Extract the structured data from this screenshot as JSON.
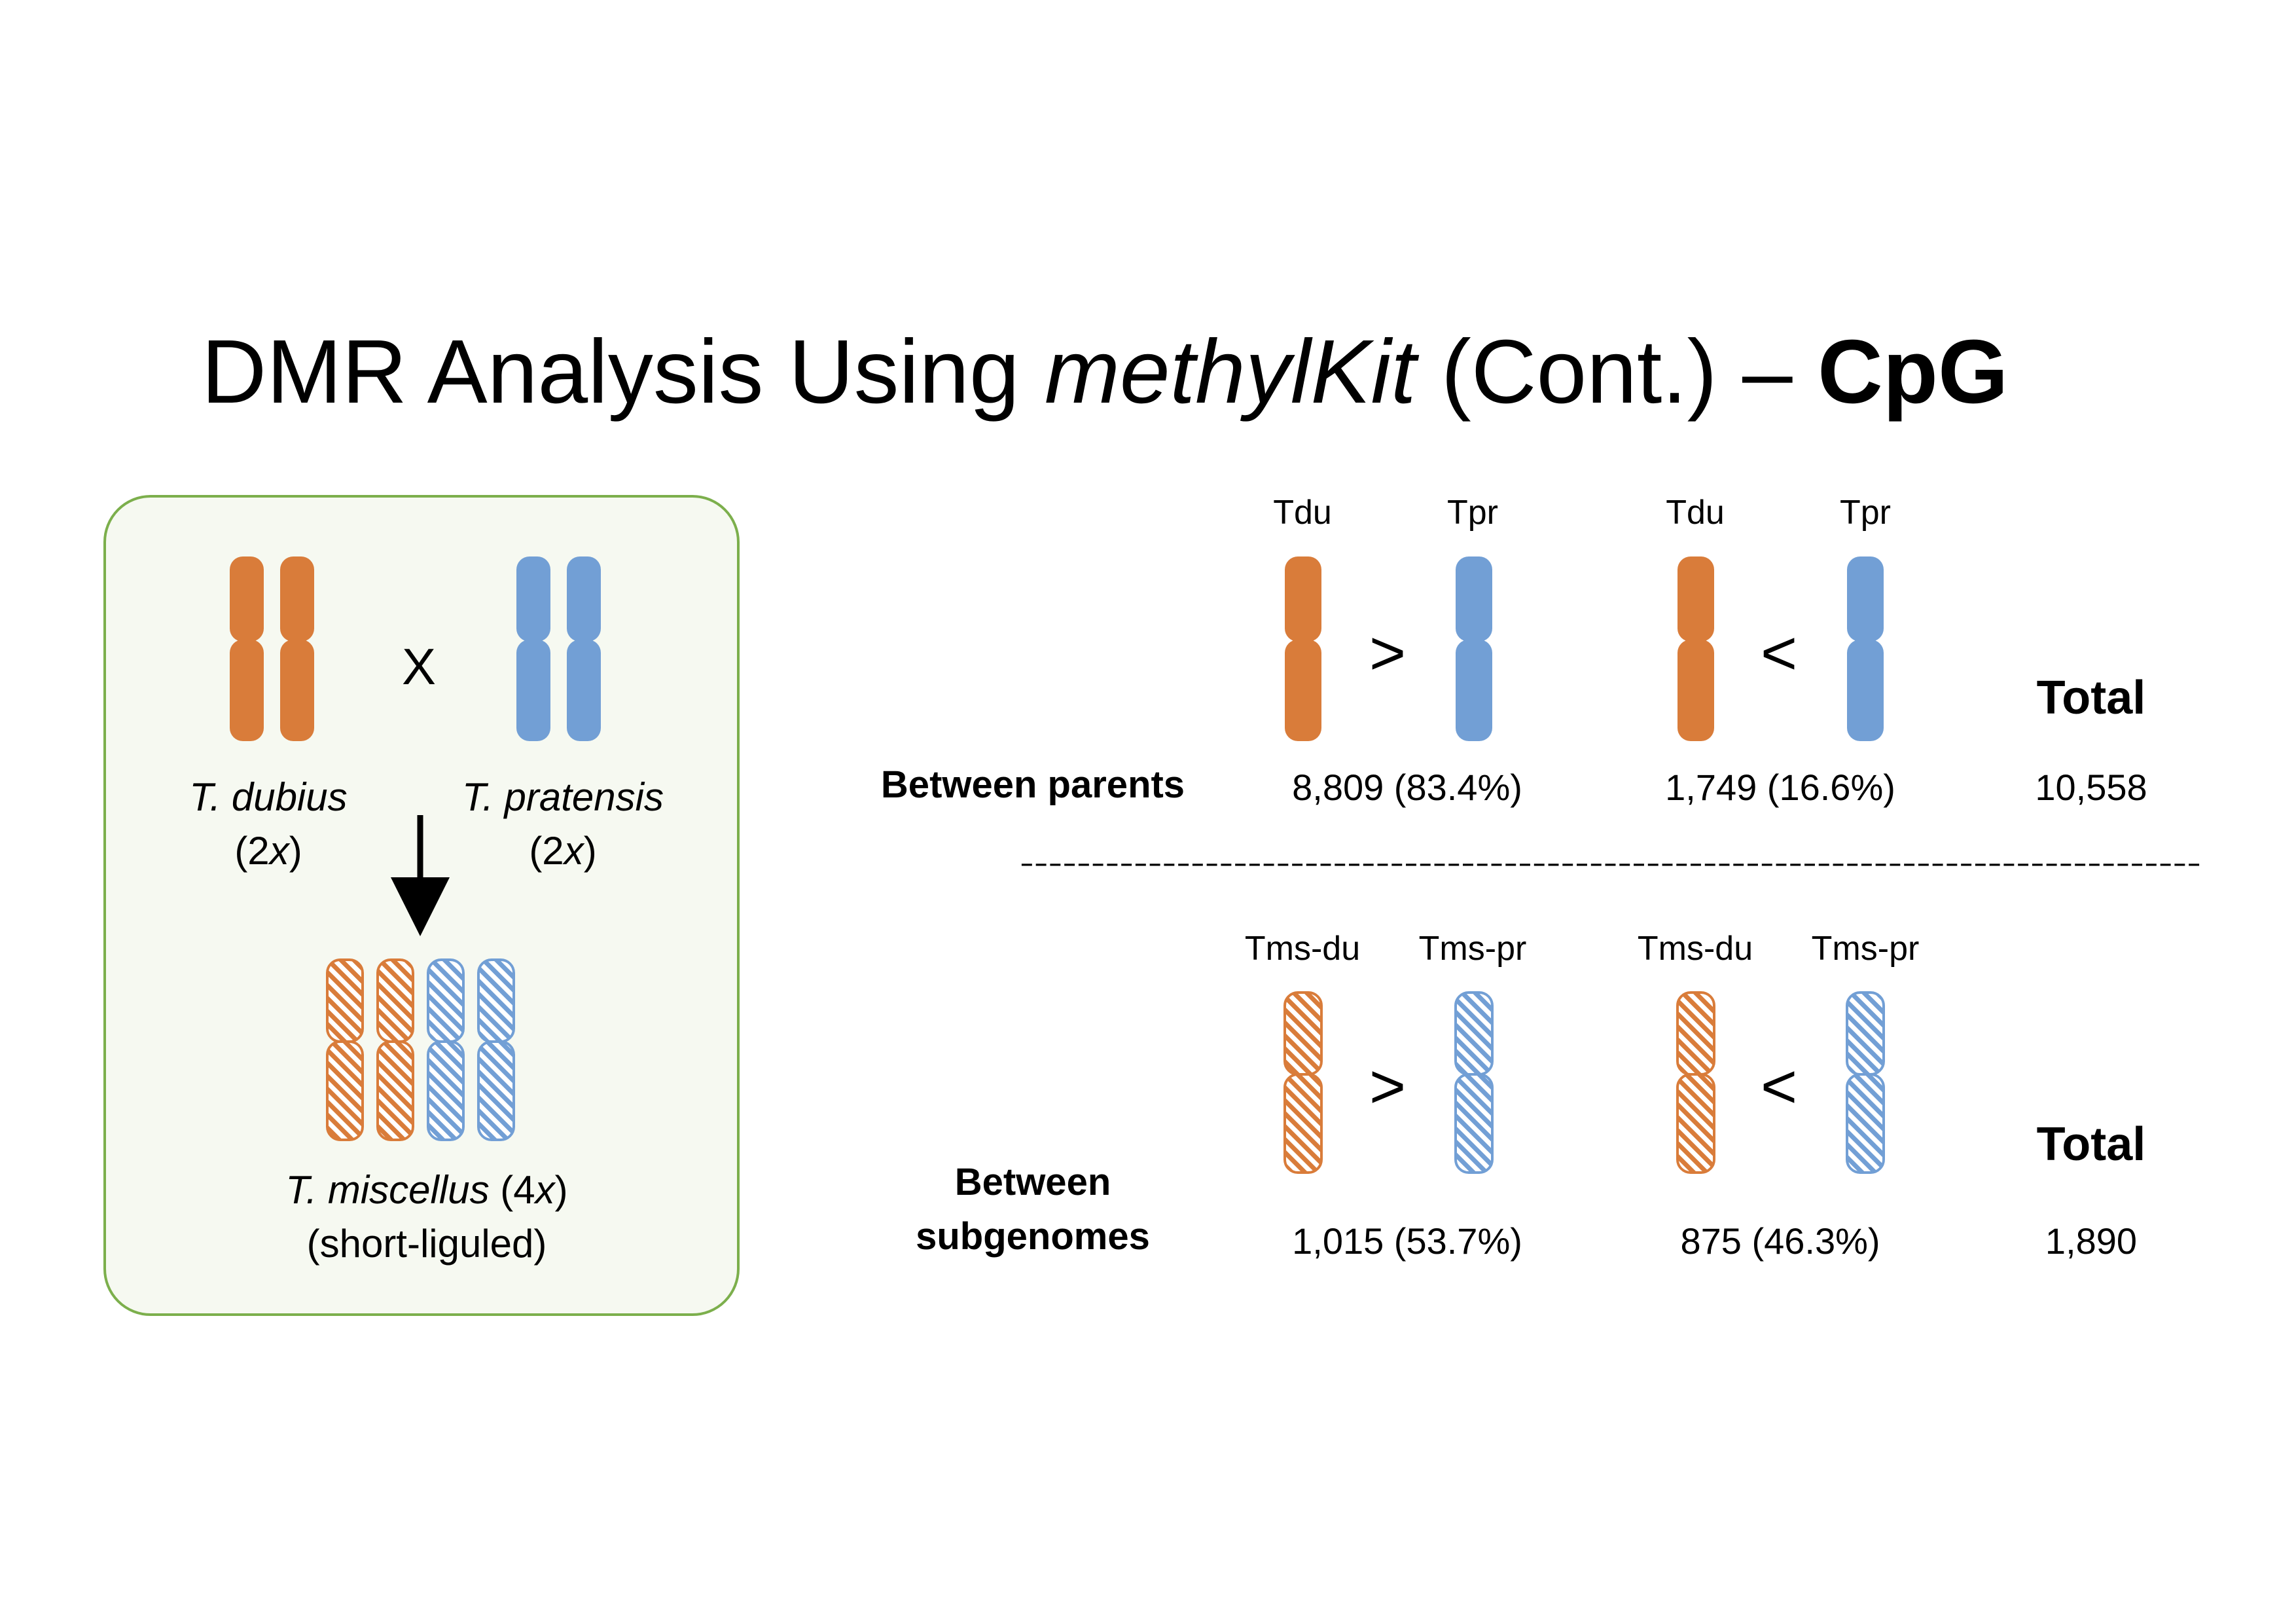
{
  "title": {
    "part1": "DMR Analysis Using ",
    "part2": "methylKit",
    "part3": " (Cont.) – ",
    "part4": "CpG"
  },
  "hybridization_panel": {
    "cross_symbol": "X",
    "parent1": {
      "name": "T. dubius",
      "ploidy_open": "(2",
      "ploidy_x": "x",
      "ploidy_close": ")"
    },
    "parent2": {
      "name": "T. pratensis",
      "ploidy_open": "(2",
      "ploidy_x": "x",
      "ploidy_close": ")"
    },
    "hybrid": {
      "name": "T. miscellus",
      "ploidy_open": " (4",
      "ploidy_x": "x",
      "ploidy_close": ")",
      "note": "(short-liguled)"
    }
  },
  "parents_comparison": {
    "row_label": "Between parents",
    "col1": {
      "left": "Tdu",
      "right": "Tpr",
      "symbol": ">",
      "count": "8,809 (83.4%)"
    },
    "col2": {
      "left": "Tdu",
      "right": "Tpr",
      "symbol": "<",
      "count": "1,749 (16.6%)"
    },
    "total_label": "Total",
    "total_value": "10,558"
  },
  "divider": "-----------------------------------------------------------------------------------",
  "subgenomes_comparison": {
    "row_label_line1": "Between",
    "row_label_line2": "subgenomes",
    "col1": {
      "left": "Tms-du",
      "right": "Tms-pr",
      "symbol": ">",
      "count": "1,015 (53.7%)"
    },
    "col2": {
      "left": "Tms-du",
      "right": "Tms-pr",
      "symbol": "<",
      "count": "875 (46.3%)"
    },
    "total_label": "Total",
    "total_value": "1,890"
  },
  "colors": {
    "orange": "#D97C3A",
    "blue": "#729FD5",
    "panel_border": "#7CAF4C",
    "panel_fill": "#F6F9F1"
  }
}
